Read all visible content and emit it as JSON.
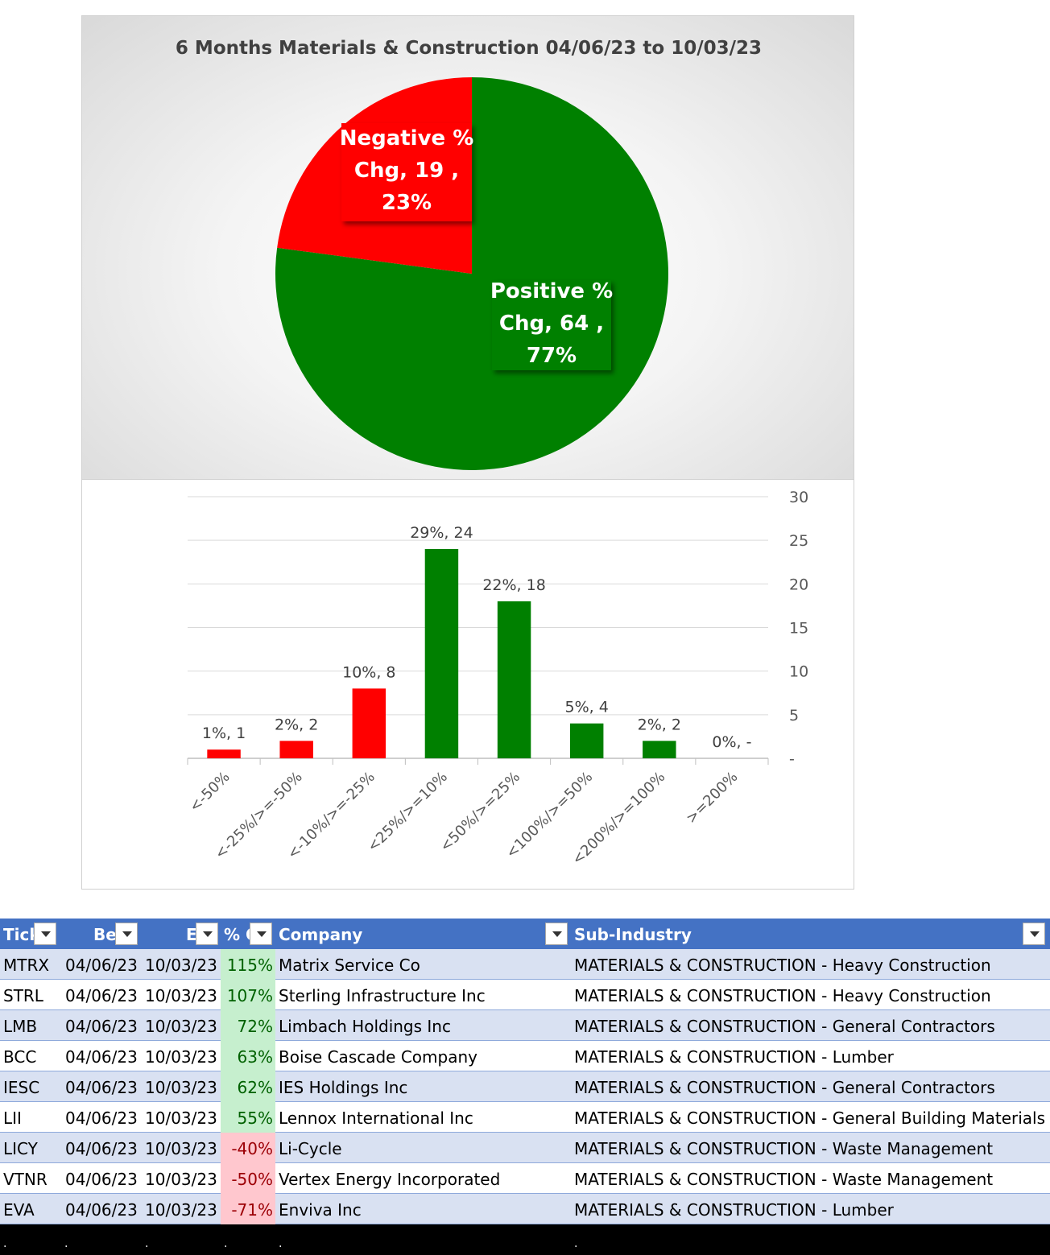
{
  "chart_data": [
    {
      "type": "pie",
      "title": "6 Months Materials & Construction 04/06/23 to 10/03/23",
      "slices": [
        {
          "name": "Positive % Chg",
          "value": 64,
          "percent": "77%",
          "color": "#008000",
          "label_lines": [
            "Positive %",
            "Chg,  64 ,",
            "77%"
          ]
        },
        {
          "name": "Negative % Chg",
          "value": 19,
          "percent": "23%",
          "color": "#ff0000",
          "label_lines": [
            "Negative %",
            "Chg,  19 ,",
            "23%"
          ]
        }
      ]
    },
    {
      "type": "bar",
      "categories": [
        "<-50%",
        "<-25%/>=-50%",
        "<-10%/>=-25%",
        "<25%/>=10%",
        "<50%/>=25%",
        "<100%/>=50%",
        "<200%/>=100%",
        ">=200%"
      ],
      "values": [
        1,
        2,
        8,
        24,
        18,
        4,
        2,
        0
      ],
      "data_labels": [
        "1%,  1",
        "2%,  2",
        "10%,  8",
        "29%,  24",
        "22%,  18",
        "5%,  4",
        "2%,  2",
        "0%,  -"
      ],
      "colors": [
        "#ff0000",
        "#ff0000",
        "#ff0000",
        "#008000",
        "#008000",
        "#008000",
        "#008000",
        "#008000"
      ],
      "ylim": [
        0,
        30
      ],
      "yticks": [
        "-",
        "5",
        "10",
        "15",
        "20",
        "25",
        "30"
      ],
      "y_axis_side": "right",
      "grid": true
    }
  ],
  "table": {
    "headers": [
      "Tick",
      "Be",
      "E",
      "% C",
      "Company",
      "Sub-Industry"
    ],
    "rows": [
      [
        "MTRX",
        "04/06/23",
        "10/03/23",
        "115%",
        "Matrix Service Co",
        "MATERIALS & CONSTRUCTION - Heavy Construction"
      ],
      [
        "STRL",
        "04/06/23",
        "10/03/23",
        "107%",
        "Sterling Infrastructure Inc",
        "MATERIALS & CONSTRUCTION - Heavy Construction"
      ],
      [
        "LMB",
        "04/06/23",
        "10/03/23",
        "72%",
        "Limbach Holdings Inc",
        "MATERIALS & CONSTRUCTION - General Contractors"
      ],
      [
        "BCC",
        "04/06/23",
        "10/03/23",
        "63%",
        "Boise Cascade Company",
        "MATERIALS & CONSTRUCTION - Lumber"
      ],
      [
        "IESC",
        "04/06/23",
        "10/03/23",
        "62%",
        "IES Holdings Inc",
        "MATERIALS & CONSTRUCTION - General Contractors"
      ],
      [
        "LII",
        "04/06/23",
        "10/03/23",
        "55%",
        "Lennox International Inc",
        "MATERIALS & CONSTRUCTION - General Building Materials"
      ],
      [
        "LICY",
        "04/06/23",
        "10/03/23",
        "-40%",
        "Li-Cycle",
        "MATERIALS & CONSTRUCTION - Waste Management"
      ],
      [
        "VTNR",
        "04/06/23",
        "10/03/23",
        "-50%",
        "Vertex Energy Incorporated",
        "MATERIALS & CONSTRUCTION - Waste Management"
      ],
      [
        "EVA",
        "04/06/23",
        "10/03/23",
        "-71%",
        "Enviva Inc",
        "MATERIALS & CONSTRUCTION - Lumber"
      ]
    ],
    "positive_fill": "#c6efce",
    "negative_fill": "#ffc7ce",
    "header_color": "#4472c4",
    "band_color": "#d9e1f2"
  },
  "footer_dots": [
    ".",
    ".",
    ".",
    ".",
    ".",
    "."
  ]
}
